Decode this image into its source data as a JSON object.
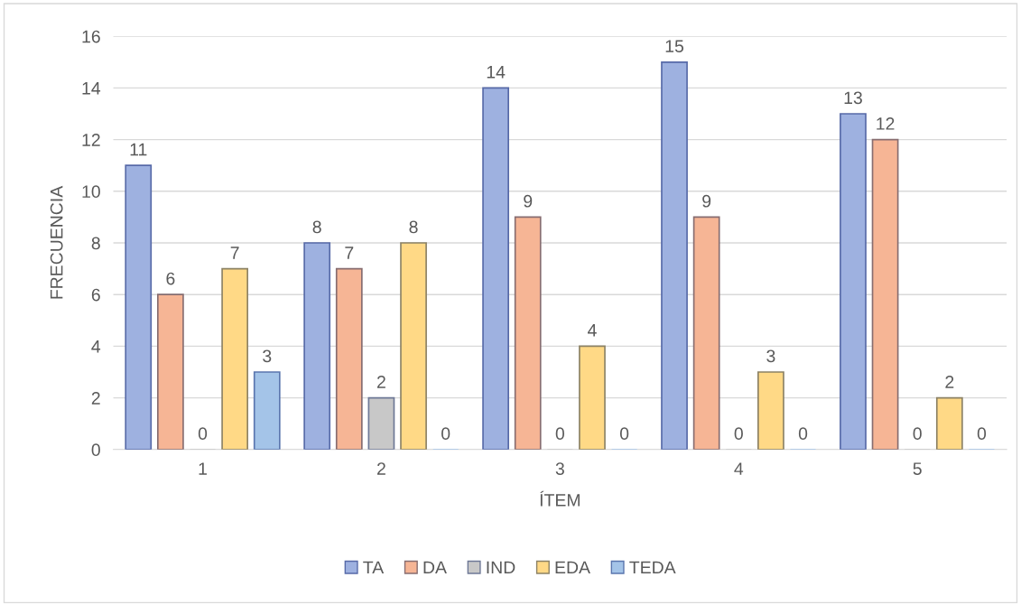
{
  "chart_data": {
    "type": "bar",
    "xlabel": "ÍTEM",
    "ylabel": "FRECUENCIA",
    "categories": [
      "1",
      "2",
      "3",
      "4",
      "5"
    ],
    "series": [
      {
        "name": "TA",
        "color": "#9eb1e0",
        "values": [
          11,
          8,
          14,
          15,
          13
        ]
      },
      {
        "name": "DA",
        "color": "#f6b595",
        "values": [
          6,
          7,
          9,
          9,
          12
        ]
      },
      {
        "name": "IND",
        "color": "#c8c8c8",
        "values": [
          0,
          2,
          0,
          0,
          0
        ]
      },
      {
        "name": "EDA",
        "color": "#ffd986",
        "values": [
          7,
          8,
          4,
          3,
          2
        ]
      },
      {
        "name": "TEDA",
        "color": "#a4c4e8",
        "values": [
          3,
          0,
          0,
          0,
          0
        ]
      }
    ],
    "ylim": [
      0,
      16
    ],
    "yticks": [
      0,
      2,
      4,
      6,
      8,
      10,
      12,
      14,
      16
    ],
    "grid": "y",
    "legend": "bottom",
    "data_labels": true
  }
}
